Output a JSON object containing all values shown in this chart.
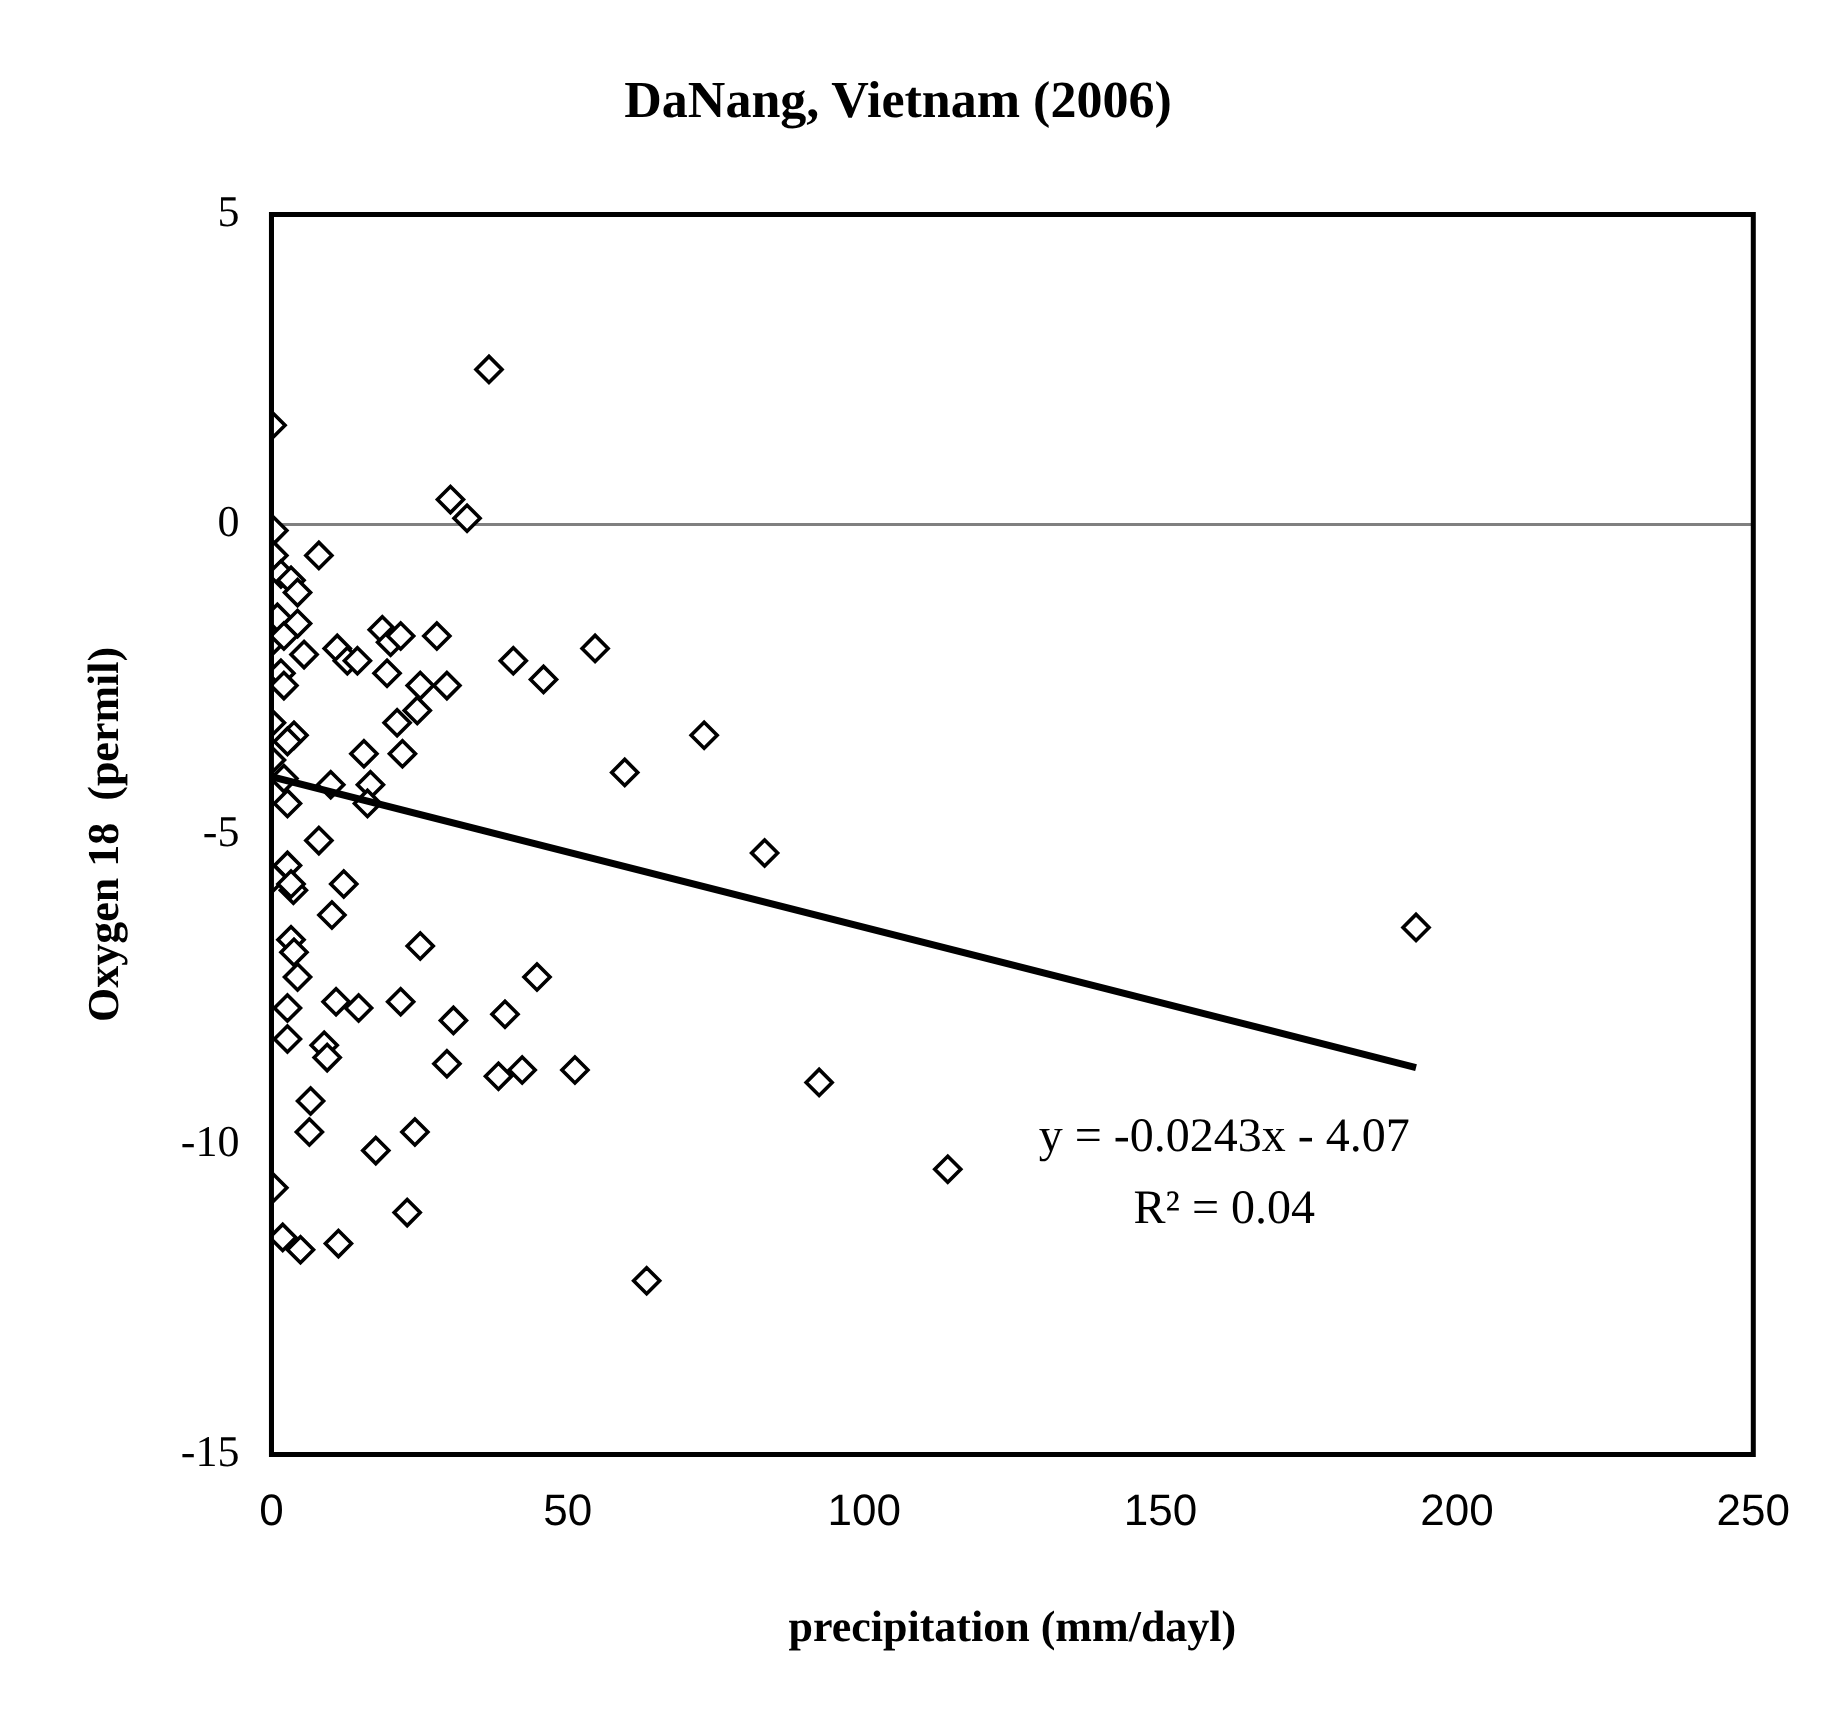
{
  "chart_data": {
    "type": "scatter",
    "title": "DaNang, Vietnam (2006)",
    "xlabel": "precipitation (mm/dayl)",
    "ylabel": "Oxygen 18  (permil)",
    "xlim": [
      0,
      250
    ],
    "xticks": [
      0,
      50,
      100,
      150,
      200,
      250
    ],
    "ylim": [
      -15,
      5
    ],
    "yticks": [
      -15,
      -10,
      -5,
      0,
      5
    ],
    "grid": false,
    "legend": false,
    "marker": "diamond",
    "ref_lines": [
      {
        "axis": "y",
        "value": 0,
        "color": "#808080"
      }
    ],
    "annotations": [
      "y = -0.0243x - 4.07",
      "R² = 0.04"
    ],
    "series": [
      {
        "color": "#000000",
        "x": [
          0.1,
          30.2,
          33,
          36.7,
          0.4,
          8,
          0.4,
          1.6,
          3.3,
          4.4,
          1,
          4.4,
          0,
          2.1,
          5.5,
          1.6,
          2.1,
          0,
          3.8,
          2.7,
          0,
          2.1,
          2.7,
          11.1,
          12.8,
          14.5,
          18.7,
          20.1,
          21.8,
          19.5,
          27.9,
          25.1,
          29.6,
          24.6,
          21.2,
          22.1,
          15.6,
          16.7,
          10,
          16.2,
          8,
          2.7,
          12.2,
          0.3,
          3.7,
          3.3,
          10.2,
          3.3,
          3.8,
          25.1,
          4.4,
          44.8,
          2.7,
          10.9,
          14.7,
          21.8,
          30.7,
          39.4,
          2.7,
          8.9,
          9.4,
          29.6,
          38.3,
          42.3,
          51.2,
          6.6,
          6.4,
          17.6,
          24.2,
          0.4,
          22.9,
          1.9,
          4.9,
          11.3,
          40.8,
          45.9,
          54.6,
          73,
          59.6,
          83.2,
          92.4,
          114.1,
          63.3,
          193.1
        ],
        "values": [
          1.6,
          0.4,
          0.1,
          2.5,
          -0.1,
          -0.5,
          -0.5,
          -0.8,
          -0.9,
          -1.1,
          -1.5,
          -1.6,
          -1.9,
          -1.8,
          -2.1,
          -2.4,
          -2.6,
          -3.2,
          -3.4,
          -3.5,
          -3.8,
          -4.1,
          -4.5,
          -2,
          -2.2,
          -2.2,
          -1.7,
          -1.9,
          -1.8,
          -2.4,
          -1.8,
          -2.6,
          -2.6,
          -3,
          -3.2,
          -3.7,
          -3.7,
          -4.2,
          -4.2,
          -4.5,
          -5.1,
          -5.5,
          -5.8,
          -5.7,
          -5.9,
          -5.8,
          -6.3,
          -6.7,
          -6.9,
          -6.8,
          -7.3,
          -7.3,
          -7.8,
          -7.7,
          -7.8,
          -7.7,
          -8,
          -7.9,
          -8.3,
          -8.4,
          -8.6,
          -8.7,
          -8.9,
          -8.8,
          -8.8,
          -9.3,
          -9.8,
          -10.1,
          -9.8,
          -10.7,
          -11.1,
          -11.5,
          -11.7,
          -11.6,
          -2.2,
          -2.5,
          -2,
          -3.4,
          -4,
          -5.3,
          -9,
          -10.4,
          -12.2,
          -6.5
        ]
      },
      {
        "type": "line",
        "color": "#000000",
        "marker": "none",
        "x": [
          0,
          193.1
        ],
        "values": [
          -4.07,
          -8.76
        ]
      }
    ]
  }
}
